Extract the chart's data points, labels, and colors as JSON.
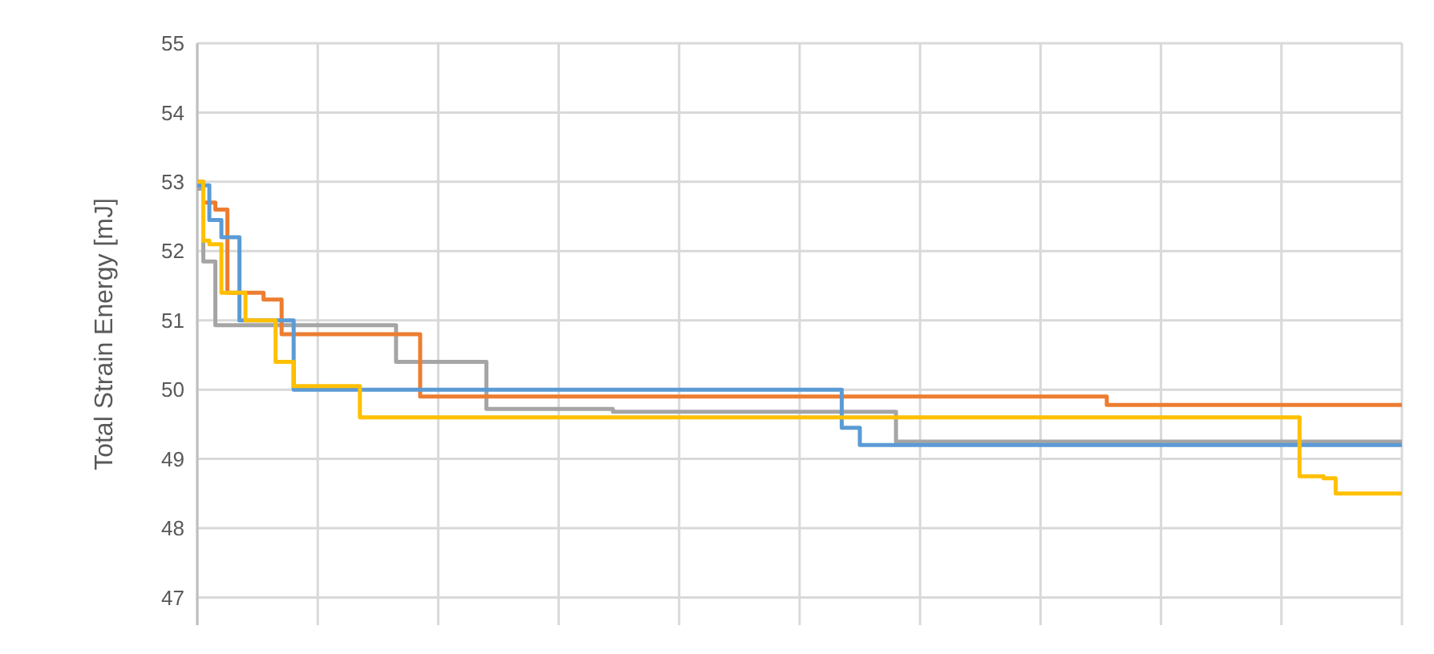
{
  "chart_data": {
    "type": "step",
    "ylabel": "Total Strain Energy [mJ]",
    "categories": [
      null,
      null,
      null,
      null,
      null,
      null,
      null,
      null,
      null,
      null,
      null,
      null,
      null,
      null,
      null,
      null,
      null,
      null,
      null,
      null,
      null,
      null,
      null,
      null,
      null,
      null,
      null,
      null,
      null,
      null,
      null,
      null,
      null,
      null,
      null,
      null,
      null,
      null,
      null,
      null,
      null,
      null,
      null,
      null,
      null,
      null,
      null,
      null,
      null,
      null,
      null,
      null,
      null,
      null,
      null,
      null,
      null,
      null,
      null,
      null,
      null,
      null,
      null,
      null,
      null,
      null,
      null,
      null,
      null,
      null,
      null,
      null,
      null,
      null,
      null,
      null,
      null,
      null,
      null,
      null,
      null,
      null,
      null,
      null,
      null,
      null,
      null,
      null,
      null,
      null,
      null,
      null,
      null,
      null,
      null,
      null,
      null,
      null,
      null,
      null,
      null,
      null,
      null,
      null,
      null,
      null,
      null,
      null,
      null,
      null,
      null,
      null,
      null,
      null,
      null,
      null,
      null,
      null,
      null,
      null,
      null,
      null,
      null,
      null,
      null,
      null,
      null,
      null,
      null,
      null,
      null,
      null,
      null,
      null,
      null,
      null,
      null,
      null,
      null,
      null,
      null,
      null,
      null,
      null,
      null,
      null,
      null,
      null,
      null,
      null,
      null,
      null,
      null,
      null,
      null,
      null,
      null,
      null,
      null,
      null,
      null,
      null,
      null,
      null,
      null,
      null,
      null,
      null,
      null,
      null,
      null,
      null,
      null,
      null,
      null,
      null,
      null,
      null,
      null,
      null,
      null,
      null,
      null,
      null,
      null,
      null,
      null,
      null,
      null,
      null,
      null,
      null,
      null,
      null,
      null,
      null,
      null,
      null,
      null,
      null,
      null
    ],
    "ylim": [
      46.6,
      55
    ],
    "yticks": [
      47,
      48,
      49,
      50,
      51,
      52,
      53,
      54,
      55
    ],
    "grid": true,
    "tick_labels": "y",
    "series": [
      {
        "color": "#a5a5a5",
        "values": [
          52.9,
          51.85,
          51.85,
          50.93,
          50.93,
          50.93,
          50.93,
          50.93,
          50.93,
          50.93,
          50.93,
          50.93,
          50.93,
          50.93,
          50.93,
          50.93,
          50.93,
          50.93,
          50.93,
          50.93,
          50.93,
          50.93,
          50.93,
          50.93,
          50.93,
          50.93,
          50.93,
          50.93,
          50.93,
          50.93,
          50.93,
          50.93,
          50.93,
          50.4,
          50.4,
          50.4,
          50.4,
          50.4,
          50.4,
          50.4,
          50.4,
          50.4,
          50.4,
          50.4,
          50.4,
          50.4,
          50.4,
          50.4,
          49.72,
          49.72,
          49.72,
          49.72,
          49.72,
          49.72,
          49.72,
          49.72,
          49.72,
          49.72,
          49.72,
          49.72,
          49.72,
          49.72,
          49.72,
          49.72,
          49.72,
          49.72,
          49.72,
          49.72,
          49.72,
          49.68,
          49.68,
          49.68,
          49.68,
          49.68,
          49.68,
          49.68,
          49.68,
          49.68,
          49.68,
          49.68,
          49.68,
          49.68,
          49.68,
          49.68,
          49.68,
          49.68,
          49.68,
          49.68,
          49.68,
          49.68,
          49.68,
          49.68,
          49.68,
          49.68,
          49.68,
          49.68,
          49.68,
          49.68,
          49.68,
          49.68,
          49.68,
          49.68,
          49.68,
          49.68,
          49.68,
          49.68,
          49.68,
          49.68,
          49.68,
          49.68,
          49.68,
          49.68,
          49.68,
          49.68,
          49.68,
          49.68,
          49.25,
          49.25,
          49.25,
          49.25,
          49.25,
          49.25,
          49.25,
          49.25,
          49.25,
          49.25,
          49.25,
          49.25,
          49.25,
          49.25,
          49.25,
          49.25,
          49.25,
          49.25,
          49.25,
          49.25,
          49.25,
          49.25,
          49.25,
          49.25,
          49.25,
          49.25,
          49.25,
          49.25,
          49.25,
          49.25,
          49.25,
          49.25,
          49.25,
          49.25,
          49.25,
          49.25,
          49.25,
          49.25,
          49.25,
          49.25,
          49.25,
          49.25,
          49.25,
          49.25,
          49.25,
          49.25,
          49.25,
          49.25,
          49.25,
          49.25,
          49.25,
          49.25,
          49.25,
          49.25,
          49.25,
          49.25,
          49.25,
          49.25,
          49.25,
          49.25,
          49.25,
          49.25,
          49.25,
          49.25,
          49.25,
          49.25,
          49.25,
          49.25,
          49.25,
          49.25,
          49.25,
          49.25,
          49.25,
          49.25,
          49.25,
          49.25,
          49.25,
          49.25,
          49.25,
          49.25,
          49.25,
          49.25,
          49.25,
          49.25,
          49.25
        ]
      },
      {
        "color": "#ed7d31",
        "values": [
          53.0,
          52.7,
          52.7,
          52.6,
          52.6,
          51.4,
          51.4,
          51.4,
          51.4,
          51.4,
          51.4,
          51.3,
          51.3,
          51.3,
          50.8,
          50.8,
          50.8,
          50.8,
          50.8,
          50.8,
          50.8,
          50.8,
          50.8,
          50.8,
          50.8,
          50.8,
          50.8,
          50.8,
          50.8,
          50.8,
          50.8,
          50.8,
          50.8,
          50.8,
          50.8,
          50.8,
          50.8,
          49.9,
          49.9,
          49.9,
          49.9,
          49.9,
          49.9,
          49.9,
          49.9,
          49.9,
          49.9,
          49.9,
          49.9,
          49.9,
          49.9,
          49.9,
          49.9,
          49.9,
          49.9,
          49.9,
          49.9,
          49.9,
          49.9,
          49.9,
          49.9,
          49.9,
          49.9,
          49.9,
          49.9,
          49.9,
          49.9,
          49.9,
          49.9,
          49.9,
          49.9,
          49.9,
          49.9,
          49.9,
          49.9,
          49.9,
          49.9,
          49.9,
          49.9,
          49.9,
          49.9,
          49.9,
          49.9,
          49.9,
          49.9,
          49.9,
          49.9,
          49.9,
          49.9,
          49.9,
          49.9,
          49.9,
          49.9,
          49.9,
          49.9,
          49.9,
          49.9,
          49.9,
          49.9,
          49.9,
          49.9,
          49.9,
          49.9,
          49.9,
          49.9,
          49.9,
          49.9,
          49.9,
          49.9,
          49.9,
          49.9,
          49.9,
          49.9,
          49.9,
          49.9,
          49.9,
          49.9,
          49.9,
          49.9,
          49.9,
          49.9,
          49.9,
          49.9,
          49.9,
          49.9,
          49.9,
          49.9,
          49.9,
          49.9,
          49.9,
          49.9,
          49.9,
          49.9,
          49.9,
          49.9,
          49.9,
          49.9,
          49.9,
          49.9,
          49.9,
          49.9,
          49.9,
          49.9,
          49.9,
          49.9,
          49.9,
          49.9,
          49.9,
          49.9,
          49.9,
          49.9,
          49.78,
          49.78,
          49.78,
          49.78,
          49.78,
          49.78,
          49.78,
          49.78,
          49.78,
          49.78,
          49.78,
          49.78,
          49.78,
          49.78,
          49.78,
          49.78,
          49.78,
          49.78,
          49.78,
          49.78,
          49.78,
          49.78,
          49.78,
          49.78,
          49.78,
          49.78,
          49.78,
          49.78,
          49.78,
          49.78,
          49.78,
          49.78,
          49.78,
          49.78,
          49.78,
          49.78,
          49.78,
          49.78,
          49.78,
          49.78,
          49.78,
          49.78,
          49.78,
          49.78,
          49.78,
          49.78,
          49.78,
          49.78,
          49.78,
          49.78
        ]
      },
      {
        "color": "#5b9bd5",
        "values": [
          52.95,
          52.95,
          52.45,
          52.45,
          52.2,
          52.2,
          52.2,
          51.0,
          51.0,
          51.0,
          51.0,
          51.0,
          51.0,
          51.0,
          51.0,
          51.0,
          50.0,
          50.0,
          50.0,
          50.0,
          50.0,
          50.0,
          50.0,
          50.0,
          50.0,
          50.0,
          50.0,
          50.0,
          50.0,
          50.0,
          50.0,
          50.0,
          50.0,
          50.0,
          50.0,
          50.0,
          50.0,
          50.0,
          50.0,
          50.0,
          50.0,
          50.0,
          50.0,
          50.0,
          50.0,
          50.0,
          50.0,
          50.0,
          50.0,
          50.0,
          50.0,
          50.0,
          50.0,
          50.0,
          50.0,
          50.0,
          50.0,
          50.0,
          50.0,
          50.0,
          50.0,
          50.0,
          50.0,
          50.0,
          50.0,
          50.0,
          50.0,
          50.0,
          50.0,
          50.0,
          50.0,
          50.0,
          50.0,
          50.0,
          50.0,
          50.0,
          50.0,
          50.0,
          50.0,
          50.0,
          50.0,
          50.0,
          50.0,
          50.0,
          50.0,
          50.0,
          50.0,
          50.0,
          50.0,
          50.0,
          50.0,
          50.0,
          50.0,
          50.0,
          50.0,
          50.0,
          50.0,
          50.0,
          50.0,
          50.0,
          50.0,
          50.0,
          50.0,
          50.0,
          50.0,
          50.0,
          50.0,
          49.45,
          49.45,
          49.45,
          49.2,
          49.2,
          49.2,
          49.2,
          49.2,
          49.2,
          49.2,
          49.2,
          49.2,
          49.2,
          49.2,
          49.2,
          49.2,
          49.2,
          49.2,
          49.2,
          49.2,
          49.2,
          49.2,
          49.2,
          49.2,
          49.2,
          49.2,
          49.2,
          49.2,
          49.2,
          49.2,
          49.2,
          49.2,
          49.2,
          49.2,
          49.2,
          49.2,
          49.2,
          49.2,
          49.2,
          49.2,
          49.2,
          49.2,
          49.2,
          49.2,
          49.2,
          49.2,
          49.2,
          49.2,
          49.2,
          49.2,
          49.2,
          49.2,
          49.2,
          49.2,
          49.2,
          49.2,
          49.2,
          49.2,
          49.2,
          49.2,
          49.2,
          49.2,
          49.2,
          49.2,
          49.2,
          49.2,
          49.2,
          49.2,
          49.2,
          49.2,
          49.2,
          49.2,
          49.2,
          49.2,
          49.2,
          49.2,
          49.2,
          49.2,
          49.2,
          49.2,
          49.2,
          49.2,
          49.2,
          49.2,
          49.2,
          49.2,
          49.2,
          49.2,
          49.2,
          49.2,
          49.2,
          49.2,
          49.2,
          49.2
        ]
      },
      {
        "color": "#ffc000",
        "values": [
          53.0,
          52.15,
          52.1,
          52.1,
          51.4,
          51.4,
          51.4,
          51.4,
          51.0,
          51.0,
          51.0,
          51.0,
          51.0,
          50.4,
          50.4,
          50.4,
          50.05,
          50.05,
          50.05,
          50.05,
          50.05,
          50.05,
          50.05,
          50.05,
          50.05,
          50.05,
          50.05,
          49.6,
          49.6,
          49.6,
          49.6,
          49.6,
          49.6,
          49.6,
          49.6,
          49.6,
          49.6,
          49.6,
          49.6,
          49.6,
          49.6,
          49.6,
          49.6,
          49.6,
          49.6,
          49.6,
          49.6,
          49.6,
          49.6,
          49.6,
          49.6,
          49.6,
          49.6,
          49.6,
          49.6,
          49.6,
          49.6,
          49.6,
          49.6,
          49.6,
          49.6,
          49.6,
          49.6,
          49.6,
          49.6,
          49.6,
          49.6,
          49.6,
          49.6,
          49.6,
          49.6,
          49.6,
          49.6,
          49.6,
          49.6,
          49.6,
          49.6,
          49.6,
          49.6,
          49.6,
          49.6,
          49.6,
          49.6,
          49.6,
          49.6,
          49.6,
          49.6,
          49.6,
          49.6,
          49.6,
          49.6,
          49.6,
          49.6,
          49.6,
          49.6,
          49.6,
          49.6,
          49.6,
          49.6,
          49.6,
          49.6,
          49.6,
          49.6,
          49.6,
          49.6,
          49.6,
          49.6,
          49.6,
          49.6,
          49.6,
          49.6,
          49.6,
          49.6,
          49.6,
          49.6,
          49.6,
          49.6,
          49.6,
          49.6,
          49.6,
          49.6,
          49.6,
          49.6,
          49.6,
          49.6,
          49.6,
          49.6,
          49.6,
          49.6,
          49.6,
          49.6,
          49.6,
          49.6,
          49.6,
          49.6,
          49.6,
          49.6,
          49.6,
          49.6,
          49.6,
          49.6,
          49.6,
          49.6,
          49.6,
          49.6,
          49.6,
          49.6,
          49.6,
          49.6,
          49.6,
          49.6,
          49.6,
          49.6,
          49.6,
          49.6,
          49.6,
          49.6,
          49.6,
          49.6,
          49.6,
          49.6,
          49.6,
          49.6,
          49.6,
          49.6,
          49.6,
          49.6,
          49.6,
          49.6,
          49.6,
          49.6,
          49.6,
          49.6,
          49.6,
          49.6,
          49.6,
          49.6,
          49.6,
          49.6,
          49.6,
          49.6,
          49.6,
          49.6,
          48.75,
          48.75,
          48.75,
          48.75,
          48.72,
          48.72,
          48.5,
          48.5,
          48.5,
          48.5,
          48.5,
          48.5,
          48.5,
          48.5,
          48.5,
          48.5,
          48.5,
          48.5
        ]
      }
    ]
  }
}
